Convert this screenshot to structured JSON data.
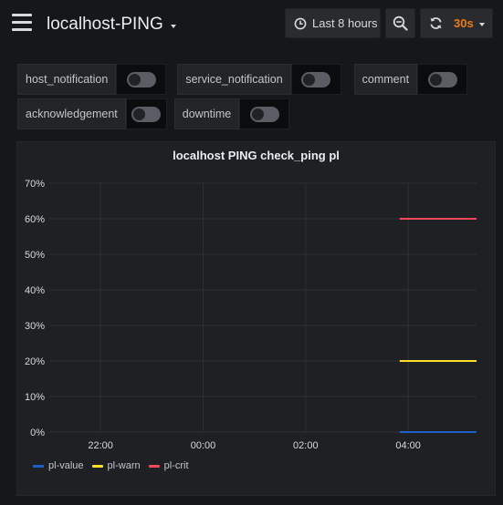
{
  "header": {
    "dashboard_title": "localhost-PING",
    "time_range": "Last 8 hours",
    "refresh_interval": "30s"
  },
  "variables": [
    {
      "label": "host_notification",
      "enabled": false
    },
    {
      "label": "service_notification",
      "enabled": false
    },
    {
      "label": "comment",
      "enabled": false
    },
    {
      "label": "acknowledgement",
      "enabled": false
    },
    {
      "label": "downtime",
      "enabled": false
    }
  ],
  "panel": {
    "title": "localhost PING check_ping pl"
  },
  "chart_data": {
    "type": "line",
    "title": "localhost PING check_ping pl",
    "x_ticks": [
      "22:00",
      "00:00",
      "02:00",
      "04:00"
    ],
    "y_ticks": [
      "0%",
      "10%",
      "20%",
      "30%",
      "40%",
      "50%",
      "60%",
      "70%"
    ],
    "ylim": [
      0,
      70
    ],
    "y_unit": "%",
    "x_range": [
      "21:00",
      "05:20"
    ],
    "grid": true,
    "legend_position": "bottom-left",
    "series": [
      {
        "name": "pl-value",
        "color": "#1f60c4",
        "x": [
          "03:50",
          "05:20"
        ],
        "y": [
          0,
          0
        ]
      },
      {
        "name": "pl-warn",
        "color": "#fade2a",
        "x": [
          "03:50",
          "05:20"
        ],
        "y": [
          20,
          20
        ]
      },
      {
        "name": "pl-crit",
        "color": "#f2495c",
        "x": [
          "03:50",
          "05:20"
        ],
        "y": [
          60,
          60
        ]
      }
    ]
  }
}
